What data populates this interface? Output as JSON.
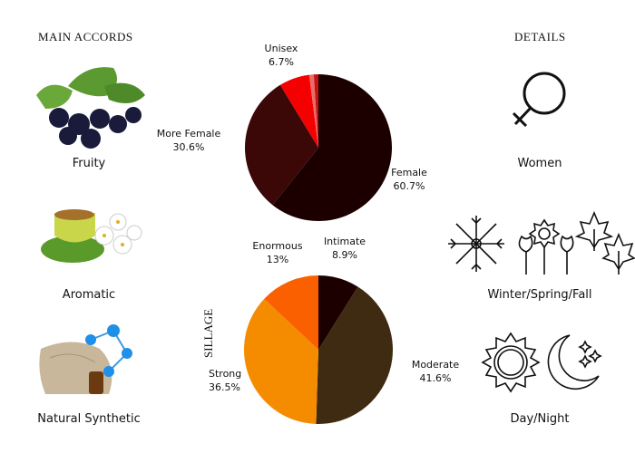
{
  "headings": {
    "main_accords": "MAIN ACCORDS",
    "details": "DETAILS",
    "sillage": "SILLAGE"
  },
  "accords": [
    {
      "label": "Fruity",
      "icon": "blackcurrant-image"
    },
    {
      "label": "Aromatic",
      "icon": "tea-jasmine-image"
    },
    {
      "label": "Natural Synthetic",
      "icon": "molecule-fabric-image"
    }
  ],
  "details": [
    {
      "label": "Women",
      "icon": "female-symbol-icon"
    },
    {
      "label": "Winter/Spring/Fall",
      "icon": "seasons-icon"
    },
    {
      "label": "Day/Night",
      "icon": "sun-moon-icon"
    }
  ],
  "chart_data": [
    {
      "type": "pie",
      "slices": [
        {
          "name": "Female",
          "value": 60.7,
          "label": "60.7%",
          "color": "#1c0000"
        },
        {
          "name": "More Female",
          "value": 30.6,
          "label": "30.6%",
          "color": "#3b0707"
        },
        {
          "name": "Unisex",
          "value": 6.7,
          "label": "6.7%",
          "color": "#f50000"
        },
        {
          "value": 1.0,
          "color": "#ef6a6a"
        },
        {
          "value": 1.0,
          "color": "#c31414"
        }
      ]
    },
    {
      "type": "pie",
      "title": "SILLAGE",
      "slices": [
        {
          "name": "Intimate",
          "value": 8.9,
          "label": "8.9%",
          "color": "#1c0000"
        },
        {
          "name": "Moderate",
          "value": 41.6,
          "label": "41.6%",
          "color": "#3f2a12"
        },
        {
          "name": "Strong",
          "value": 36.5,
          "label": "36.5%",
          "color": "#f58c00"
        },
        {
          "name": "Enormous",
          "value": 13,
          "label": "13%",
          "color": "#fb6000"
        }
      ]
    }
  ]
}
